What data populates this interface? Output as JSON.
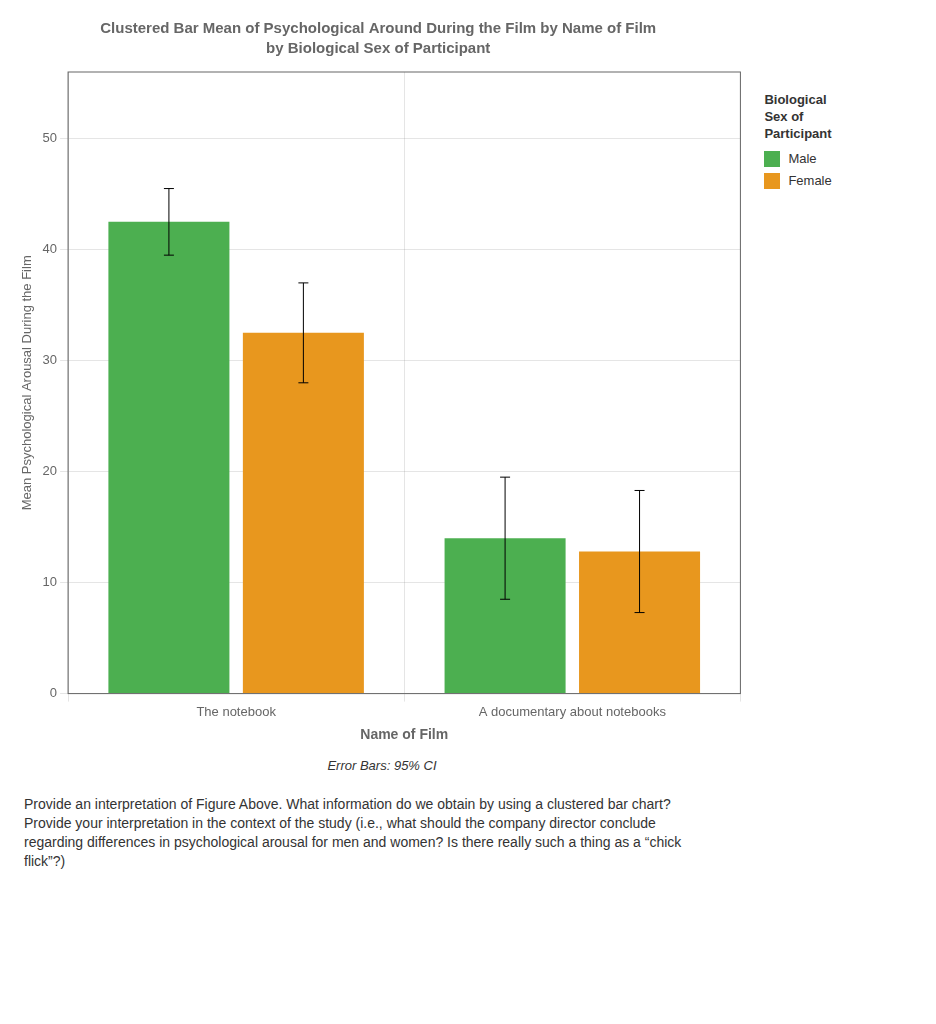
{
  "chart_data": {
    "type": "bar",
    "title": "Clustered Bar Mean of Psychological Around During the Film by Name of Film",
    "subtitle": "by Biological Sex of Participant",
    "xlabel": "Name of Film",
    "ylabel": "Mean Psychological Arousal During the Film",
    "categories": [
      "The notebook",
      "A documentary about notebooks"
    ],
    "series": [
      {
        "name": "Male",
        "color": "#4CAF50",
        "values": [
          42.5,
          14.0
        ],
        "errors": [
          3.0,
          5.5
        ]
      },
      {
        "name": "Female",
        "color": "#E8971E",
        "values": [
          32.5,
          12.8
        ],
        "errors": [
          4.5,
          5.5
        ]
      }
    ],
    "ylim": [
      0,
      56
    ],
    "yticks": [
      0,
      10,
      20,
      30,
      40,
      50
    ],
    "grid": true,
    "legend": "right",
    "legend_title": "Biological\nSex of\nParticipant",
    "annotations": [
      "Error Bars: 95% CI",
      "Provide an interpretation of Figure Above. What information do we obtain by using a clustered bar chart?\nProvide your interpretation in the context of the study (i.e., what should the company director conclude\nregarding differences in psychological arousal for men and women? Is there really such a thing as a “chick\nflick”?)"
    ]
  }
}
